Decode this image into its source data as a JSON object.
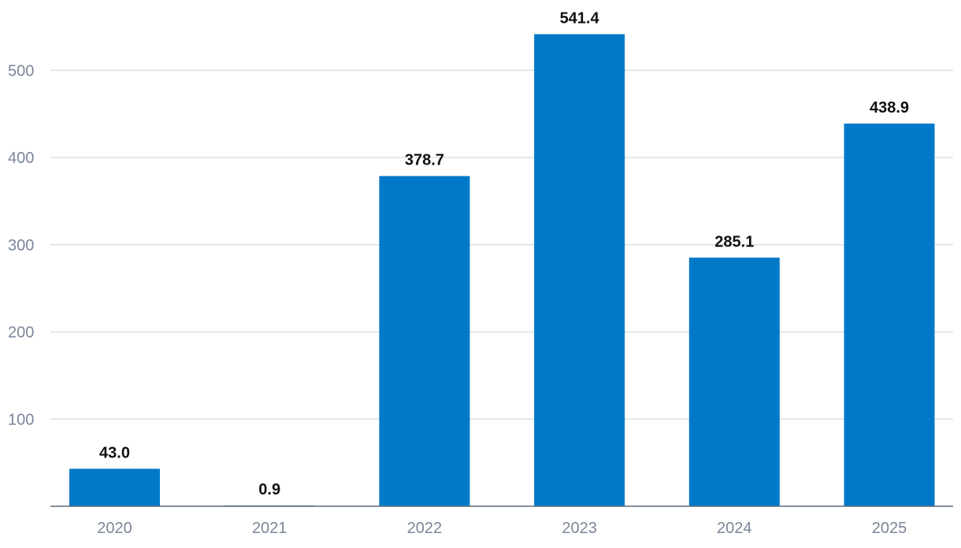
{
  "chart_data": {
    "type": "bar",
    "title": "",
    "xlabel": "",
    "ylabel": "",
    "categories": [
      "2020",
      "2021",
      "2022",
      "2023",
      "2024",
      "2025"
    ],
    "values": [
      43.0,
      0.9,
      378.7,
      541.4,
      285.1,
      438.9
    ],
    "data_labels": [
      "43.0",
      "0.9",
      "378.7",
      "541.4",
      "285.1",
      "438.9"
    ],
    "y_ticks": [
      100,
      200,
      300,
      400,
      500
    ],
    "y_tick_labels": [
      "100",
      "200",
      "300",
      "400",
      "500"
    ],
    "ylim": [
      0,
      580
    ],
    "grid": true,
    "legend": "none",
    "colors": {
      "bar": "#0279c8",
      "grid": "#d5d9e0",
      "axis": "#5f6b7a",
      "tick_text": "#7a8699",
      "label_text": "#111111"
    }
  }
}
